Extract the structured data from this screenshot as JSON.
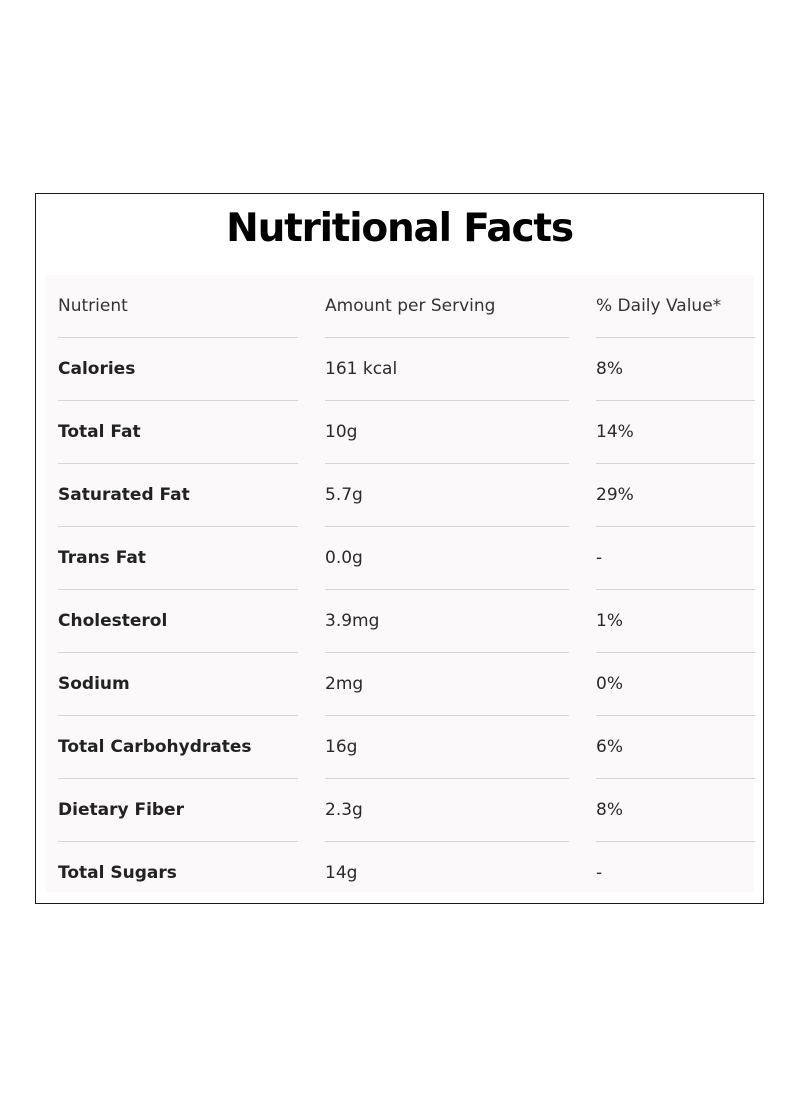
{
  "title": "Nutritional Facts",
  "table": {
    "headers": [
      "Nutrient",
      "Amount per Serving",
      "% Daily Value*"
    ],
    "rows": [
      {
        "nutrient": "Calories",
        "amount": "161 kcal",
        "daily_value": "8%"
      },
      {
        "nutrient": "Total Fat",
        "amount": "10g",
        "daily_value": "14%"
      },
      {
        "nutrient": "Saturated Fat",
        "amount": "5.7g",
        "daily_value": "29%"
      },
      {
        "nutrient": "Trans Fat",
        "amount": "0.0g",
        "daily_value": "-"
      },
      {
        "nutrient": "Cholesterol",
        "amount": "3.9mg",
        "daily_value": "1%"
      },
      {
        "nutrient": "Sodium",
        "amount": "2mg",
        "daily_value": "0%"
      },
      {
        "nutrient": "Total Carbohydrates",
        "amount": "16g",
        "daily_value": "6%"
      },
      {
        "nutrient": "Dietary Fiber",
        "amount": "2.3g",
        "daily_value": "8%"
      },
      {
        "nutrient": "Total Sugars",
        "amount": "14g",
        "daily_value": "-"
      }
    ]
  }
}
